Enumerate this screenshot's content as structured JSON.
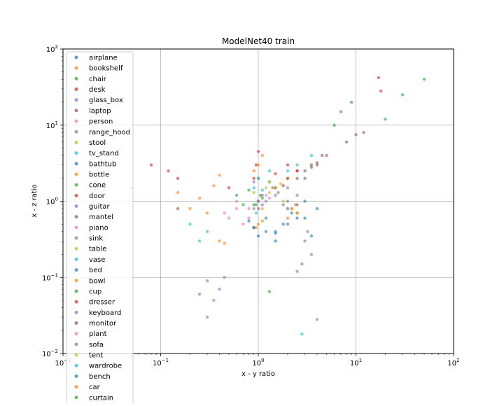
{
  "chart_data": {
    "type": "scatter",
    "title": "ModelNet40 train",
    "xlabel": "x - y ratio",
    "ylabel": "x - z ratio",
    "xscale": "log",
    "yscale": "log",
    "xlim": [
      0.01,
      100
    ],
    "ylim": [
      0.01,
      100
    ],
    "x_ticks": [
      0.01,
      0.1,
      1,
      10,
      100
    ],
    "y_ticks": [
      0.01,
      0.1,
      1,
      10,
      100
    ],
    "x_tick_labels": [
      {
        "base": "10",
        "exp": "−2"
      },
      {
        "base": "10",
        "exp": "−1"
      },
      {
        "base": "10",
        "exp": "0"
      },
      {
        "base": "10",
        "exp": "1"
      },
      {
        "base": "10",
        "exp": "2"
      }
    ],
    "y_tick_labels": [
      {
        "base": "10",
        "exp": "−2"
      },
      {
        "base": "10",
        "exp": "−1"
      },
      {
        "base": "10",
        "exp": "0"
      },
      {
        "base": "10",
        "exp": "1"
      },
      {
        "base": "10",
        "exp": "2"
      }
    ],
    "grid": true,
    "legend_position": "upper-left",
    "series": [
      {
        "name": "airplane",
        "color": "#1f77b4",
        "points": [
          [
            0.9,
            0.45
          ],
          [
            1.2,
            0.6
          ],
          [
            2.0,
            0.5
          ],
          [
            3.5,
            0.35
          ],
          [
            1.5,
            0.3
          ],
          [
            0.8,
            0.55
          ]
        ]
      },
      {
        "name": "bookshelf",
        "color": "#ff7f0e",
        "points": [
          [
            0.25,
            1.1
          ],
          [
            0.35,
            1.6
          ],
          [
            0.2,
            0.8
          ],
          [
            0.4,
            2.2
          ],
          [
            0.3,
            0.7
          ],
          [
            0.15,
            1.3
          ]
        ]
      },
      {
        "name": "chair",
        "color": "#2ca02c",
        "points": [
          [
            0.8,
            1.4
          ],
          [
            1.0,
            2.0
          ],
          [
            0.6,
            1.2
          ],
          [
            1.3,
            1.8
          ],
          [
            0.7,
            0.9
          ],
          [
            0.05,
            1.5
          ]
        ]
      },
      {
        "name": "desk",
        "color": "#d62728",
        "points": [
          [
            1.5,
            2.3
          ],
          [
            2.0,
            3.0
          ],
          [
            0.5,
            1.5
          ],
          [
            2.5,
            2.5
          ],
          [
            1.8,
            1.6
          ],
          [
            0.15,
            2.0
          ]
        ]
      },
      {
        "name": "glass_box",
        "color": "#9467bd",
        "points": [
          [
            1.5,
            1.2
          ],
          [
            2.0,
            1.5
          ],
          [
            1.1,
            0.9
          ],
          [
            0.9,
            1.8
          ]
        ]
      },
      {
        "name": "laptop",
        "color": "#8c564b",
        "points": [
          [
            3.0,
            2.5
          ],
          [
            4.0,
            3.2
          ],
          [
            2.5,
            2.0
          ],
          [
            3.5,
            2.8
          ]
        ]
      },
      {
        "name": "person",
        "color": "#e377c2",
        "points": [
          [
            0.5,
            0.6
          ],
          [
            0.6,
            0.8
          ],
          [
            0.45,
            0.7
          ],
          [
            0.7,
            0.5
          ]
        ]
      },
      {
        "name": "range_hood",
        "color": "#7f7f7f",
        "points": [
          [
            1.2,
            1.0
          ],
          [
            1.6,
            1.3
          ],
          [
            1.0,
            0.8
          ],
          [
            1.4,
            1.5
          ]
        ]
      },
      {
        "name": "stool",
        "color": "#bcbd22",
        "points": [
          [
            1.0,
            1.0
          ],
          [
            1.2,
            1.5
          ],
          [
            0.9,
            1.3
          ],
          [
            1.1,
            0.8
          ]
        ]
      },
      {
        "name": "tv_stand",
        "color": "#17becf",
        "points": [
          [
            2.0,
            2.5
          ],
          [
            3.5,
            4.0
          ],
          [
            2.5,
            3.0
          ],
          [
            0.3,
            0.4
          ],
          [
            0.2,
            0.5
          ],
          [
            0.25,
            0.3
          ]
        ]
      },
      {
        "name": "bathtub",
        "color": "#1f77b4",
        "points": [
          [
            1.8,
            0.5
          ],
          [
            2.2,
            0.7
          ],
          [
            1.5,
            0.4
          ],
          [
            2.5,
            0.9
          ],
          [
            3.0,
            0.6
          ]
        ]
      },
      {
        "name": "bottle",
        "color": "#ff7f0e",
        "points": [
          [
            1.0,
            3.0
          ],
          [
            0.9,
            2.5
          ],
          [
            1.1,
            4.0
          ],
          [
            0.4,
            0.3
          ],
          [
            0.45,
            0.28
          ]
        ]
      },
      {
        "name": "cone",
        "color": "#2ca02c",
        "points": [
          [
            1.0,
            1.0
          ],
          [
            1.05,
            1.2
          ],
          [
            0.95,
            0.9
          ]
        ]
      },
      {
        "name": "door",
        "color": "#d62728",
        "points": [
          [
            0.95,
            3.0
          ],
          [
            1.0,
            4.5
          ],
          [
            0.9,
            2.0
          ],
          [
            0.08,
            3.0
          ],
          [
            0.12,
            2.5
          ]
        ]
      },
      {
        "name": "guitar",
        "color": "#9467bd",
        "points": [
          [
            0.3,
            0.09
          ],
          [
            0.35,
            0.05
          ],
          [
            0.4,
            0.07
          ],
          [
            0.3,
            0.03
          ],
          [
            0.45,
            0.1
          ],
          [
            0.25,
            0.06
          ]
        ]
      },
      {
        "name": "mantel",
        "color": "#8c564b",
        "points": [
          [
            4.0,
            3.0
          ],
          [
            5.0,
            4.0
          ],
          [
            3.0,
            2.0
          ],
          [
            0.15,
            0.8
          ]
        ]
      },
      {
        "name": "piano",
        "color": "#e377c2",
        "points": [
          [
            1.0,
            0.8
          ],
          [
            1.3,
            1.1
          ],
          [
            0.8,
            0.6
          ],
          [
            0.6,
            1.0
          ]
        ]
      },
      {
        "name": "sink",
        "color": "#7f7f7f",
        "points": [
          [
            1.0,
            1.0
          ],
          [
            1.1,
            1.2
          ],
          [
            0.9,
            0.8
          ]
        ]
      },
      {
        "name": "table",
        "color": "#bcbd22",
        "points": [
          [
            1.5,
            1.5
          ],
          [
            2.0,
            2.0
          ],
          [
            1.8,
            1.0
          ],
          [
            1.3,
            1.8
          ]
        ]
      },
      {
        "name": "vase",
        "color": "#17becf",
        "points": [
          [
            1.0,
            1.0
          ],
          [
            1.1,
            1.4
          ],
          [
            0.95,
            0.7
          ]
        ]
      },
      {
        "name": "bed",
        "color": "#1f77b4",
        "points": [
          [
            1.0,
            0.35
          ],
          [
            1.2,
            0.4
          ],
          [
            0.9,
            0.45
          ],
          [
            1.5,
            0.38
          ]
        ]
      },
      {
        "name": "bowl",
        "color": "#ff7f0e",
        "points": [
          [
            1.0,
            0.5
          ],
          [
            1.1,
            0.55
          ],
          [
            0.95,
            0.45
          ],
          [
            2.5,
            0.7
          ],
          [
            2.2,
            0.8
          ]
        ]
      },
      {
        "name": "cup",
        "color": "#2ca02c",
        "points": [
          [
            1.0,
            1.0
          ],
          [
            1.1,
            1.1
          ],
          [
            0.9,
            0.9
          ],
          [
            1.3,
            0.065
          ]
        ]
      },
      {
        "name": "dresser",
        "color": "#d62728",
        "points": [
          [
            2.0,
            2.0
          ],
          [
            2.5,
            2.5
          ],
          [
            1.5,
            1.5
          ],
          [
            17.0,
            42.0
          ],
          [
            18.0,
            28.0
          ]
        ]
      },
      {
        "name": "keyboard",
        "color": "#9467bd",
        "points": [
          [
            3.0,
            0.3
          ],
          [
            3.5,
            0.2
          ],
          [
            2.8,
            0.15
          ],
          [
            3.2,
            0.4
          ],
          [
            2.5,
            0.12
          ]
        ]
      },
      {
        "name": "monitor",
        "color": "#8c564b",
        "points": [
          [
            3.5,
            3.0
          ],
          [
            4.5,
            4.0
          ],
          [
            8.0,
            6.0
          ],
          [
            10.0,
            7.5
          ],
          [
            12.0,
            8.0
          ]
        ]
      },
      {
        "name": "plant",
        "color": "#e377c2",
        "points": [
          [
            1.0,
            1.0
          ],
          [
            1.2,
            1.2
          ],
          [
            0.8,
            0.8
          ]
        ]
      },
      {
        "name": "sofa",
        "color": "#7f7f7f",
        "points": [
          [
            2.0,
            1.0
          ],
          [
            2.5,
            1.2
          ],
          [
            1.8,
            0.9
          ],
          [
            4.0,
            0.028
          ]
        ]
      },
      {
        "name": "tent",
        "color": "#bcbd22",
        "points": [
          [
            1.5,
            1.5
          ],
          [
            1.7,
            1.7
          ],
          [
            1.3,
            1.3
          ]
        ]
      },
      {
        "name": "wardrobe",
        "color": "#17becf",
        "points": [
          [
            1.0,
            2.0
          ],
          [
            1.3,
            2.5
          ],
          [
            0.9,
            1.5
          ],
          [
            2.8,
            0.018
          ]
        ]
      },
      {
        "name": "bench",
        "color": "#1f77b4",
        "points": [
          [
            2.0,
            0.8
          ],
          [
            3.0,
            1.0
          ],
          [
            2.5,
            0.6
          ],
          [
            4.0,
            0.8
          ]
        ]
      },
      {
        "name": "car",
        "color": "#ff7f0e",
        "points": [
          [
            2.2,
            0.8
          ],
          [
            2.5,
            0.7
          ],
          [
            2.0,
            0.6
          ],
          [
            2.4,
            0.9
          ]
        ]
      },
      {
        "name": "curtain",
        "color": "#2ca02c",
        "points": [
          [
            7.0,
            15.0
          ],
          [
            9.0,
            20.0
          ],
          [
            20.0,
            12.0
          ],
          [
            30.0,
            25.0
          ],
          [
            50.0,
            40.0
          ],
          [
            6.0,
            10.0
          ]
        ]
      }
    ]
  }
}
